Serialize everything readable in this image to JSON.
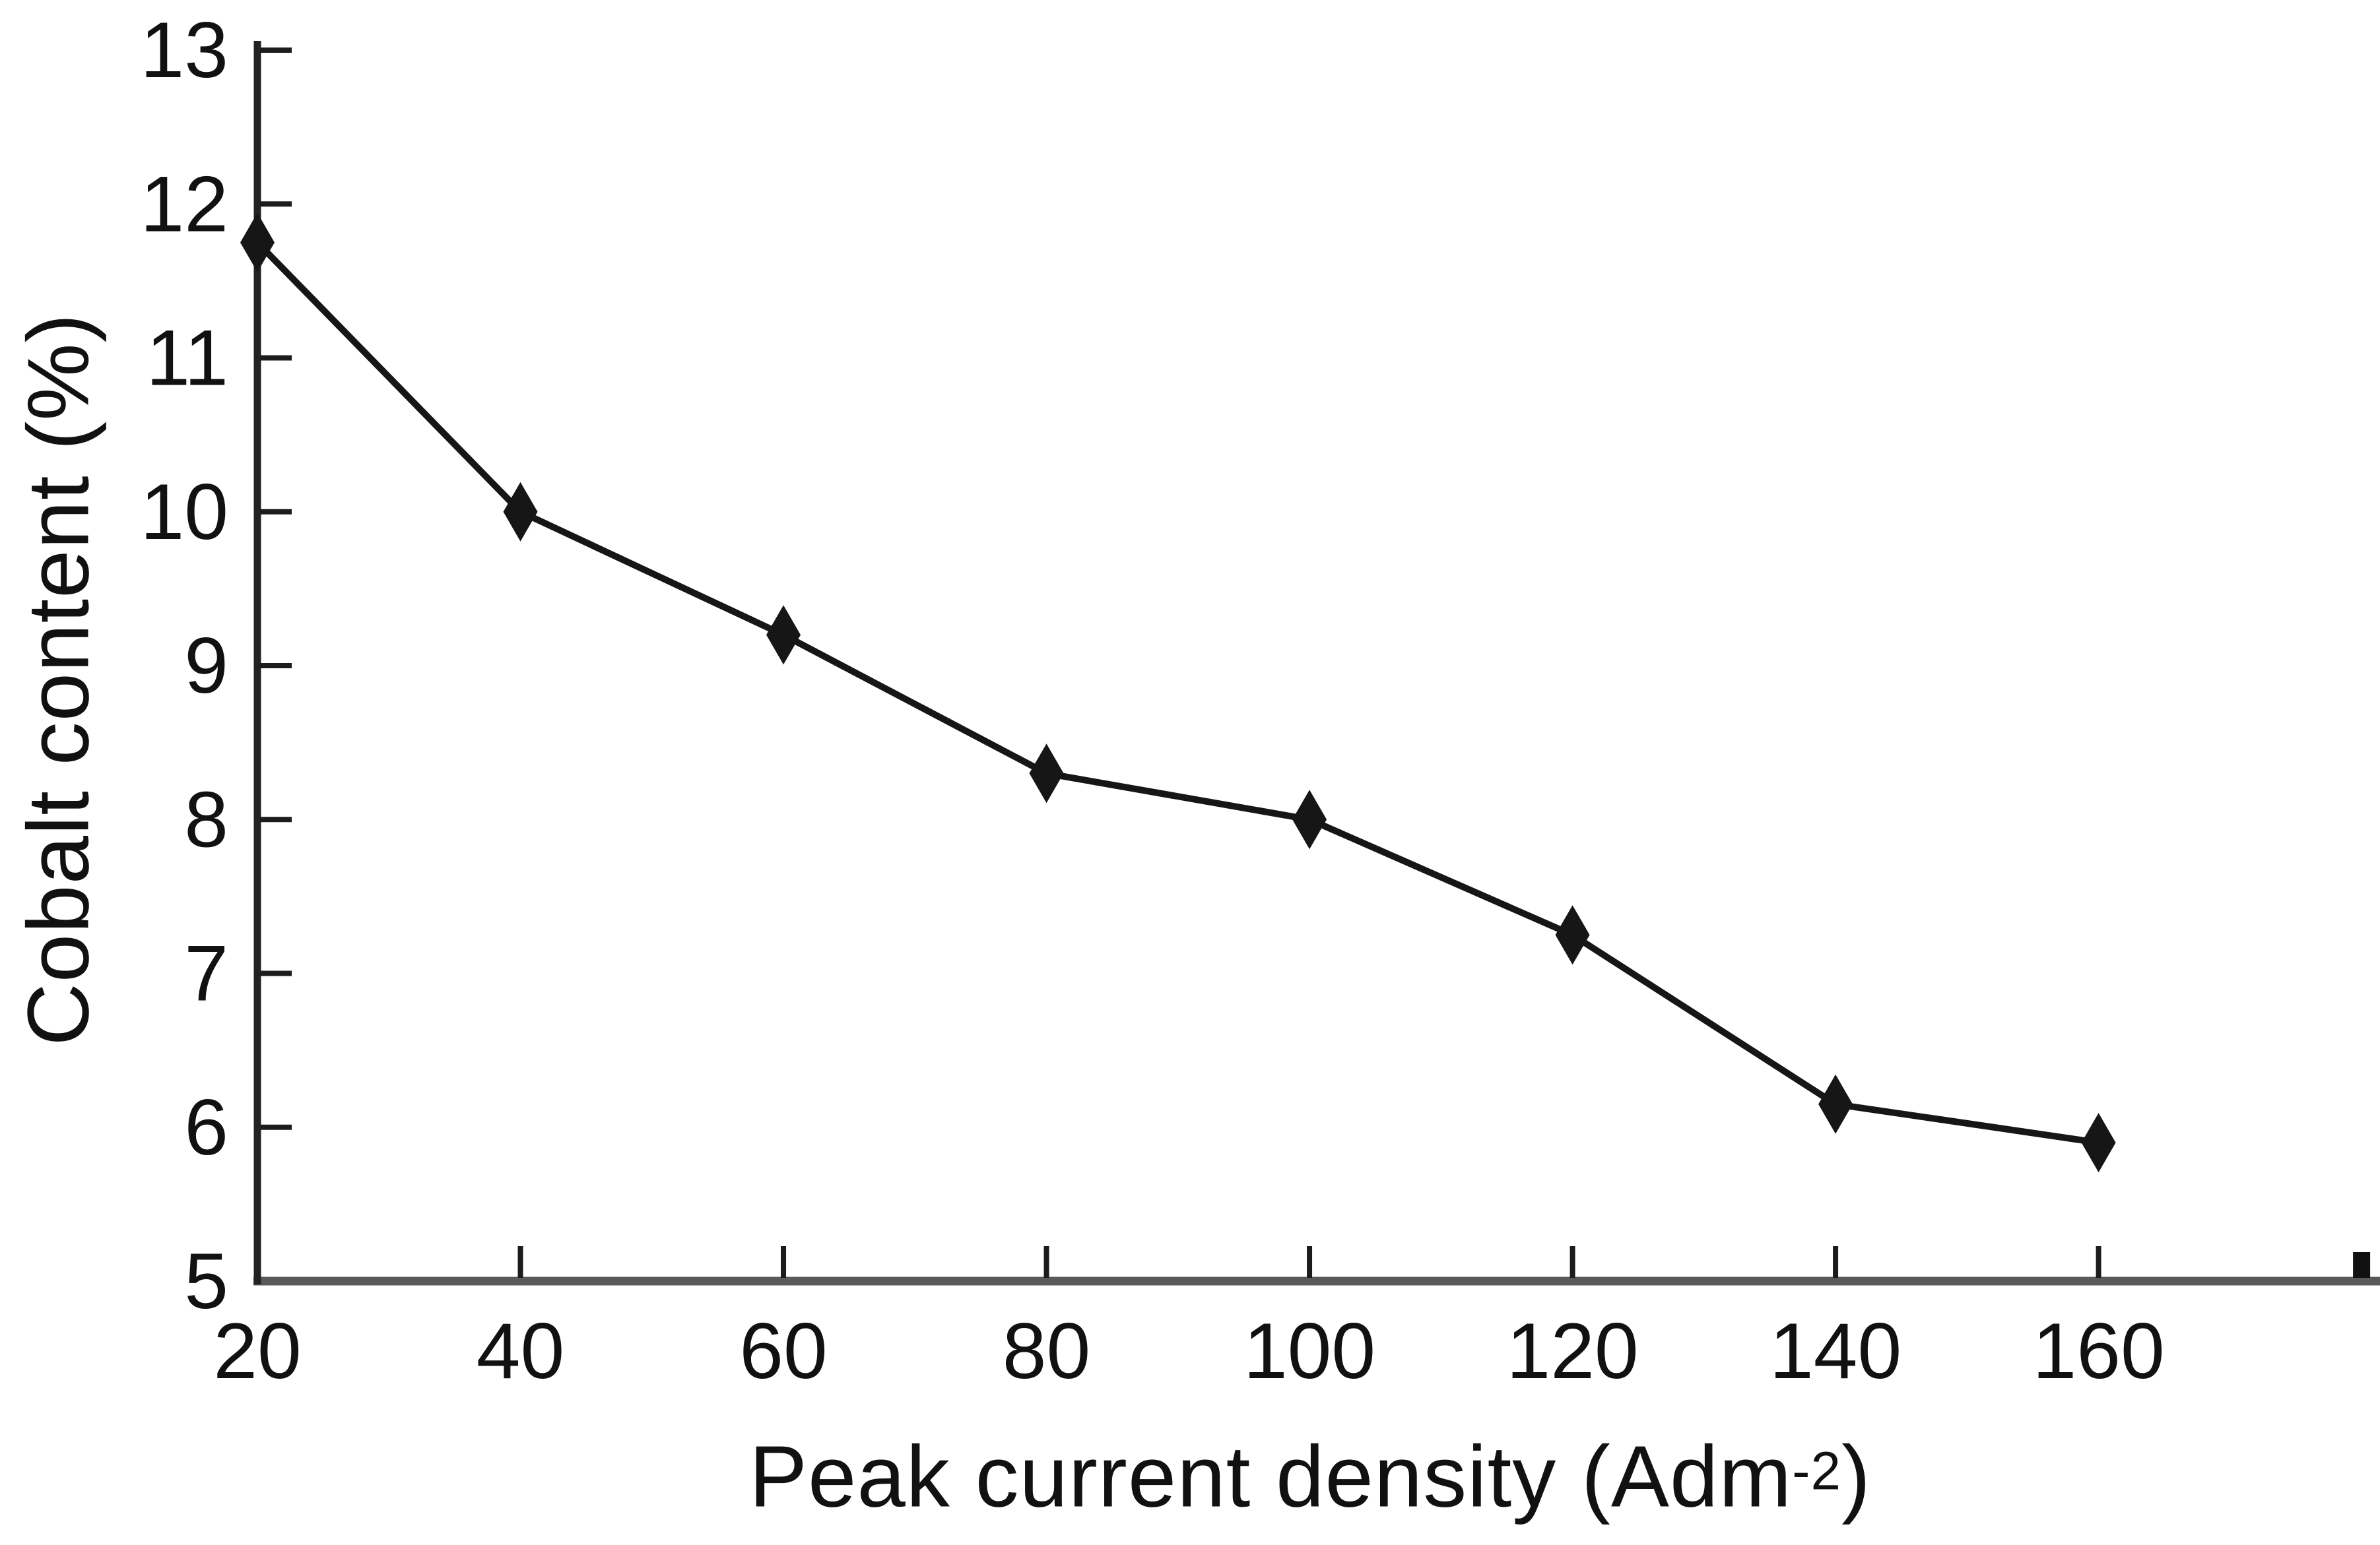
{
  "chart_data": {
    "type": "line",
    "title": "",
    "ylabel": "Cobalt content (%)",
    "xlabel": {
      "prefix": "Peak current density (Adm",
      "superscript": "-2",
      "suffix": ")"
    },
    "x": [
      20,
      40,
      60,
      80,
      100,
      120,
      140,
      160
    ],
    "series": [
      {
        "name": "Cobalt content",
        "marker": "diamond",
        "values": [
          11.75,
          10.0,
          9.2,
          8.3,
          8.0,
          7.25,
          6.15,
          5.9
        ]
      }
    ],
    "x_tick_labels": [
      "20",
      "40",
      "60",
      "80",
      "100",
      "120",
      "140",
      "160"
    ],
    "y_tick_labels": [
      "5",
      "6",
      "7",
      "8",
      "9",
      "10",
      "11",
      "12",
      "13"
    ],
    "x_ticks_labeled": [
      20,
      40,
      60,
      80,
      100,
      120,
      140,
      160
    ],
    "x_tick_marks": [
      40,
      60,
      80,
      100,
      120,
      140,
      160,
      180
    ],
    "y_tick_marks": [
      6,
      7,
      8,
      9,
      10,
      11,
      12,
      13
    ],
    "xlim": [
      20,
      181.4
    ],
    "ylim": [
      5,
      13
    ],
    "grid": false,
    "legend": false,
    "colors": {
      "line": "#161616",
      "marker": "#161616",
      "text": "#111111",
      "y_axis": "#222222",
      "x_axis": "#5a5a5a",
      "tick": "#1c1c1c",
      "background": "#ffffff"
    }
  }
}
